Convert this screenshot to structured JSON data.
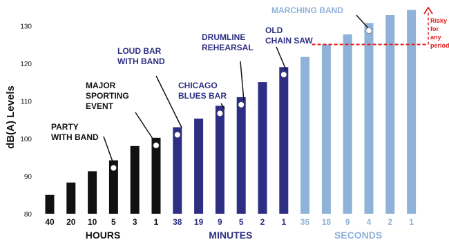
{
  "chart_data": {
    "type": "bar",
    "ylabel": "dB(A) Levels",
    "ylim": [
      80,
      135
    ],
    "yticks": [
      80,
      90,
      100,
      110,
      120,
      130
    ],
    "grid": false,
    "categories": [
      "40",
      "20",
      "10",
      "5",
      "3",
      "1",
      "38",
      "19",
      "9",
      "5",
      "2",
      "1",
      "35",
      "18",
      "9",
      "4",
      "2",
      "1"
    ],
    "values": [
      85,
      88.3,
      91.3,
      94.2,
      98,
      100.2,
      103,
      105.3,
      108.7,
      111,
      115,
      119,
      121.7,
      125,
      127.7,
      130.7,
      132.8,
      134.2
    ],
    "bar_colors": [
      "#111111",
      "#111111",
      "#111111",
      "#111111",
      "#111111",
      "#111111",
      "#2e2f84",
      "#2e2f84",
      "#2e2f84",
      "#2e2f84",
      "#2e2f84",
      "#2e2f84",
      "#8fb2d9",
      "#8fb2d9",
      "#8fb2d9",
      "#8fb2d9",
      "#8fb2d9",
      "#8fb2d9"
    ],
    "groups": [
      {
        "label": "HOURS",
        "start": 0,
        "end": 5,
        "color": "#111111"
      },
      {
        "label": "MINUTES",
        "start": 6,
        "end": 11,
        "color": "#2e2f84"
      },
      {
        "label": "SECONDS",
        "start": 12,
        "end": 17,
        "color": "#8fb2d9"
      }
    ],
    "annotations": [
      {
        "lines": [
          "PARTY",
          "WITH BAND"
        ],
        "bar": 3,
        "color": "#111111"
      },
      {
        "lines": [
          "MAJOR",
          "SPORTING",
          "EVENT"
        ],
        "bar": 5,
        "color": "#111111"
      },
      {
        "lines": [
          "LOUD BAR",
          "WITH BAND"
        ],
        "bar": 6,
        "color": "#2e2f84"
      },
      {
        "lines": [
          "CHICAGO",
          "BLUES BAR"
        ],
        "bar": 8,
        "color": "#2e2f84"
      },
      {
        "lines": [
          "DRUMLINE",
          "REHEARSAL"
        ],
        "bar": 9,
        "color": "#2e2f84"
      },
      {
        "lines": [
          "OLD",
          "CHAIN SAW"
        ],
        "bar": 11,
        "color": "#2e2f84"
      },
      {
        "lines": [
          "MARCHING BAND"
        ],
        "bar": 15,
        "color": "#8fb2d9"
      }
    ],
    "threshold": {
      "value": 125,
      "color": "#e41a1c",
      "label_lines": [
        "Risky",
        "for",
        "any",
        "period"
      ]
    }
  }
}
